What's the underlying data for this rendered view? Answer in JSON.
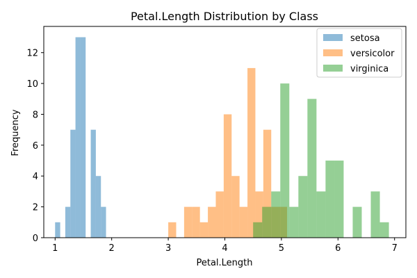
{
  "chart_data": {
    "type": "bar",
    "title": "Petal.Length Distribution by Class",
    "xlabel": "Petal.Length",
    "ylabel": "Frequency",
    "xlim": [
      0.8,
      7.2
    ],
    "ylim": [
      0,
      13.7
    ],
    "xticks": [
      1,
      2,
      3,
      4,
      5,
      6,
      7
    ],
    "yticks": [
      0,
      2,
      4,
      6,
      8,
      10,
      12
    ],
    "grid": false,
    "legend_position": "top-right",
    "series": [
      {
        "name": "setosa",
        "color": "#1f77b4",
        "opacity": 0.5,
        "bins": [
          {
            "x0": 1.0,
            "x1": 1.09,
            "count": 1
          },
          {
            "x0": 1.09,
            "x1": 1.18,
            "count": 0
          },
          {
            "x0": 1.18,
            "x1": 1.27,
            "count": 2
          },
          {
            "x0": 1.27,
            "x1": 1.36,
            "count": 7
          },
          {
            "x0": 1.36,
            "x1": 1.45,
            "count": 13
          },
          {
            "x0": 1.45,
            "x1": 1.54,
            "count": 13
          },
          {
            "x0": 1.54,
            "x1": 1.63,
            "count": 0
          },
          {
            "x0": 1.63,
            "x1": 1.72,
            "count": 7
          },
          {
            "x0": 1.72,
            "x1": 1.81,
            "count": 4
          },
          {
            "x0": 1.81,
            "x1": 1.9,
            "count": 2
          }
        ]
      },
      {
        "name": "versicolor",
        "color": "#ff7f0e",
        "opacity": 0.5,
        "bins": [
          {
            "x0": 3.0,
            "x1": 3.14,
            "count": 1
          },
          {
            "x0": 3.14,
            "x1": 3.28,
            "count": 0
          },
          {
            "x0": 3.28,
            "x1": 3.42,
            "count": 2
          },
          {
            "x0": 3.42,
            "x1": 3.56,
            "count": 2
          },
          {
            "x0": 3.56,
            "x1": 3.7,
            "count": 1
          },
          {
            "x0": 3.7,
            "x1": 3.84,
            "count": 2
          },
          {
            "x0": 3.84,
            "x1": 3.98,
            "count": 3
          },
          {
            "x0": 3.98,
            "x1": 4.12,
            "count": 8
          },
          {
            "x0": 4.12,
            "x1": 4.26,
            "count": 4
          },
          {
            "x0": 4.26,
            "x1": 4.4,
            "count": 2
          },
          {
            "x0": 4.4,
            "x1": 4.54,
            "count": 11
          },
          {
            "x0": 4.54,
            "x1": 4.68,
            "count": 3
          },
          {
            "x0": 4.68,
            "x1": 4.82,
            "count": 7
          },
          {
            "x0": 4.82,
            "x1": 4.96,
            "count": 2
          },
          {
            "x0": 4.96,
            "x1": 5.1,
            "count": 2
          }
        ]
      },
      {
        "name": "virginica",
        "color": "#2ca02c",
        "opacity": 0.5,
        "bins": [
          {
            "x0": 4.5,
            "x1": 4.66,
            "count": 1
          },
          {
            "x0": 4.66,
            "x1": 4.82,
            "count": 2
          },
          {
            "x0": 4.82,
            "x1": 4.98,
            "count": 3
          },
          {
            "x0": 4.98,
            "x1": 5.14,
            "count": 10
          },
          {
            "x0": 5.14,
            "x1": 5.3,
            "count": 2
          },
          {
            "x0": 5.3,
            "x1": 5.46,
            "count": 4
          },
          {
            "x0": 5.46,
            "x1": 5.62,
            "count": 9
          },
          {
            "x0": 5.62,
            "x1": 5.78,
            "count": 3
          },
          {
            "x0": 5.78,
            "x1": 5.94,
            "count": 5
          },
          {
            "x0": 5.94,
            "x1": 6.1,
            "count": 5
          },
          {
            "x0": 6.1,
            "x1": 6.26,
            "count": 0
          },
          {
            "x0": 6.26,
            "x1": 6.42,
            "count": 2
          },
          {
            "x0": 6.42,
            "x1": 6.58,
            "count": 0
          },
          {
            "x0": 6.58,
            "x1": 6.74,
            "count": 3
          },
          {
            "x0": 6.74,
            "x1": 6.9,
            "count": 1
          }
        ]
      }
    ]
  }
}
